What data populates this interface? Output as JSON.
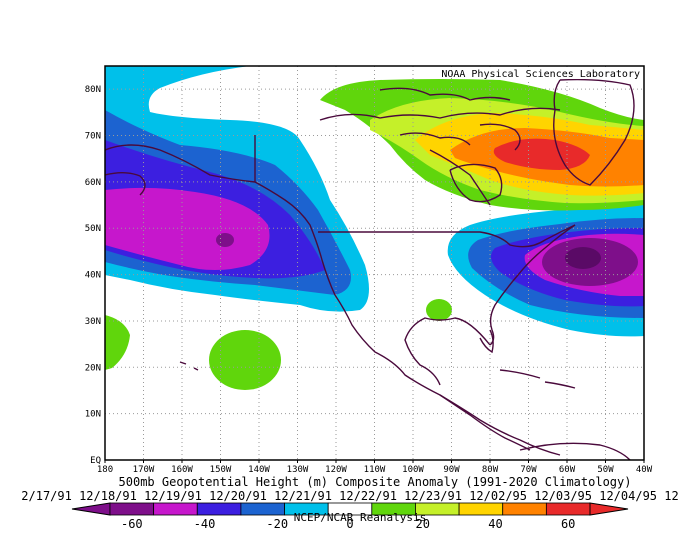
{
  "header": {
    "credit": "NOAA Physical Sciences Laboratory"
  },
  "map": {
    "lon_ticks": [
      "180",
      "170W",
      "160W",
      "150W",
      "140W",
      "130W",
      "120W",
      "110W",
      "100W",
      "90W",
      "80W",
      "70W",
      "60W",
      "50W",
      "40W"
    ],
    "lat_ticks": [
      "EQ",
      "10N",
      "20N",
      "30N",
      "40N",
      "50N",
      "60N",
      "70N",
      "80N"
    ],
    "grid": "dotted"
  },
  "caption": {
    "title": "500mb Geopotential Height (m) Composite Anomaly (1991-2020 Climatology)",
    "dates": "2/17/91 12/18/91 12/19/91 12/20/91 12/21/91 12/22/91 12/23/91 12/02/95 12/03/95 12/04/95 12",
    "source": "NCEP/NCAR Reanalysis"
  },
  "colorbar": {
    "labels": [
      "-60",
      "-40",
      "-20",
      "0",
      "20",
      "40",
      "60"
    ],
    "colors": {
      "b1": "#7e0f8a",
      "b2": "#c617cc",
      "b3": "#3c1fe0",
      "b4": "#1c63d0",
      "b5": "#00c0ea",
      "b6": "#ffffff",
      "b7": "#60d60c",
      "b8": "#c5f029",
      "b9": "#ffd400",
      "b10": "#ff8200",
      "b11": "#e82a2a"
    }
  },
  "colors": {
    "coast": "#4a0a3c",
    "grid": "#9a9a9a",
    "frame": "#000000"
  }
}
